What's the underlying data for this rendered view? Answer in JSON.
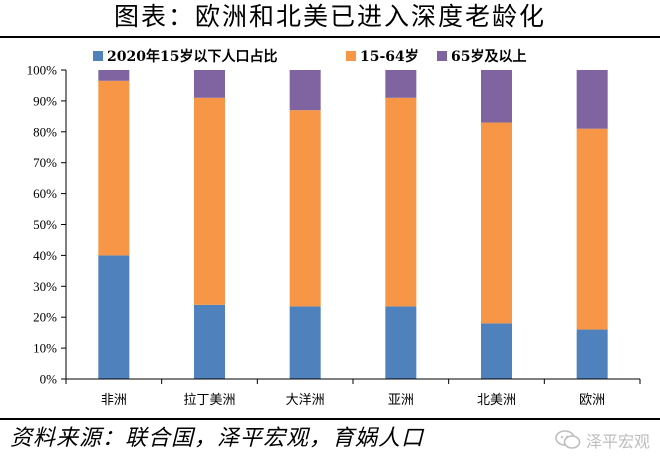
{
  "title": "图表：欧洲和北美已进入深度老龄化",
  "source": "资料来源：联合国，泽平宏观，育娲人口",
  "watermark": "泽平宏观",
  "chart_data": {
    "type": "bar",
    "stacked": true,
    "percent": true,
    "categories": [
      "非洲",
      "拉丁美洲",
      "大洋洲",
      "亚洲",
      "北美洲",
      "欧洲"
    ],
    "series": [
      {
        "name": "2020年15岁以下人口占比",
        "color": "#4f81bd",
        "values": [
          40,
          24,
          23.5,
          23.5,
          18,
          16
        ]
      },
      {
        "name": "15-64岁",
        "color": "#f79646",
        "values": [
          56.5,
          67,
          63.5,
          67.5,
          65,
          65
        ]
      },
      {
        "name": "65岁及以上",
        "color": "#8064a2",
        "values": [
          3.5,
          9,
          13,
          9,
          17,
          19
        ]
      }
    ],
    "ylim": [
      0,
      100
    ],
    "yticks": [
      "0%",
      "10%",
      "20%",
      "30%",
      "40%",
      "50%",
      "60%",
      "70%",
      "80%",
      "90%",
      "100%"
    ],
    "legend_position": "top",
    "grid": false
  }
}
